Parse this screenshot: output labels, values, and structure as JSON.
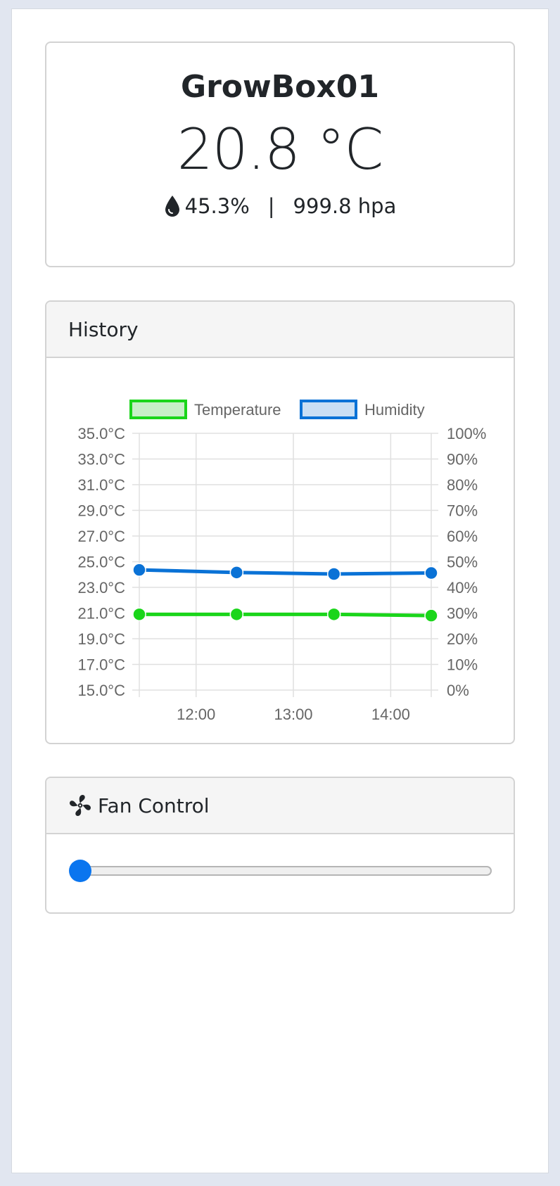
{
  "status": {
    "device_name": "GrowBox01",
    "temperature": "20.8 °C",
    "humidity": "45.3%",
    "separator": "|",
    "pressure": "999.8 hpa",
    "humidity_icon": "water-drop-icon"
  },
  "history": {
    "title": "History"
  },
  "fan_control": {
    "title": "Fan Control",
    "icon": "fan-icon",
    "slider_value": 0,
    "slider_min": 0,
    "slider_max": 100
  },
  "colors": {
    "temperature": "#1ad51a",
    "humidity": "#0a72d6",
    "slider_accent": "#0a75ef",
    "grid": "#e0e0e0",
    "tick_text": "#666666"
  },
  "chart_data": {
    "type": "line",
    "legend_position": "top",
    "grid": true,
    "x": [
      "11:25",
      "12:25",
      "13:25",
      "14:25"
    ],
    "x_ticks": [
      "12:00",
      "13:00",
      "14:00"
    ],
    "x_range": [
      "11:25",
      "14:25"
    ],
    "y_left": {
      "min": 15,
      "max": 35,
      "ticks": [
        "15.0°C",
        "17.0°C",
        "19.0°C",
        "21.0°C",
        "23.0°C",
        "25.0°C",
        "27.0°C",
        "29.0°C",
        "31.0°C",
        "33.0°C",
        "35.0°C"
      ]
    },
    "y_right": {
      "min": 0,
      "max": 100,
      "ticks": [
        "0%",
        "10%",
        "20%",
        "30%",
        "40%",
        "50%",
        "60%",
        "70%",
        "80%",
        "90%",
        "100%"
      ]
    },
    "series": [
      {
        "name": "Temperature",
        "axis": "left",
        "color": "#1ad51a",
        "fill": "#c7efc7",
        "values": [
          20.9,
          20.9,
          20.9,
          20.8
        ]
      },
      {
        "name": "Humidity",
        "axis": "right",
        "color": "#0a72d6",
        "fill": "#c9dff4",
        "values": [
          46.8,
          45.8,
          45.2,
          45.6
        ]
      }
    ]
  }
}
